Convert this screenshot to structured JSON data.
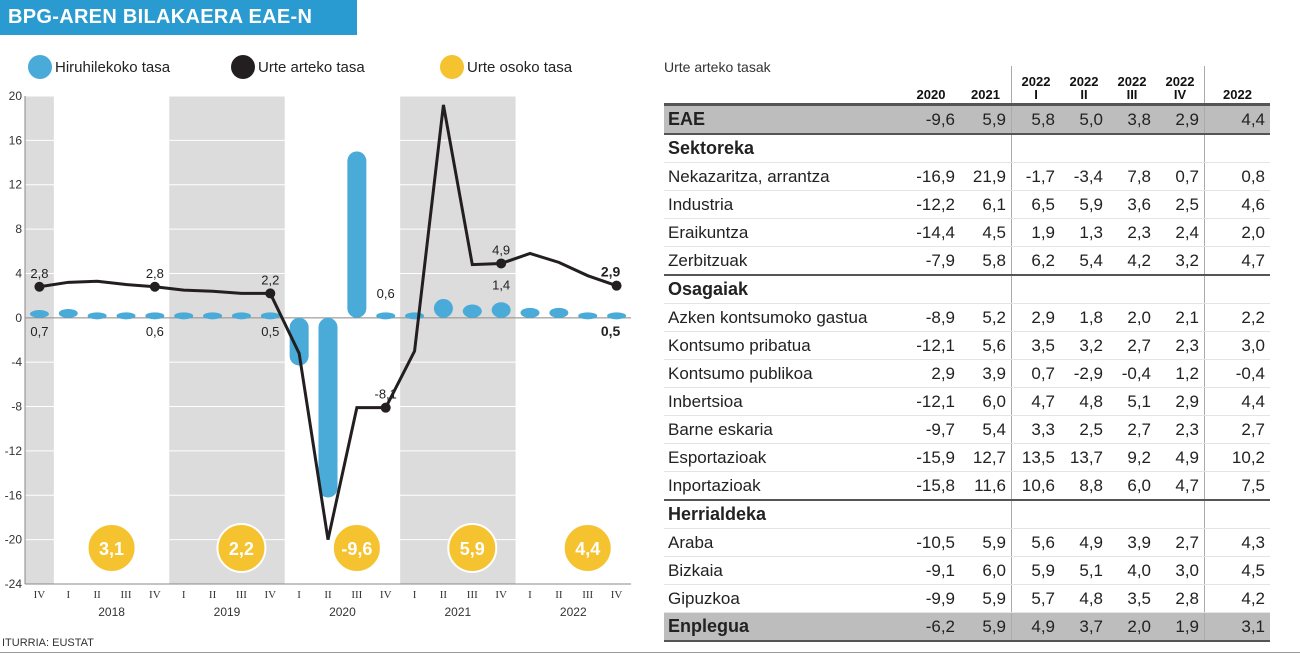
{
  "title": "BPG-AREN BILAKAERA EAE-N",
  "source": "ITURRIA: EUSTAT",
  "chart_data": {
    "type": "bar",
    "legend": {
      "placement": "top",
      "items": [
        {
          "name": "Hiruhilekoko tasa",
          "color": "#4aaad8"
        },
        {
          "name": "Urte arteko tasa",
          "color": "#231f20"
        },
        {
          "name": "Urte osoko tasa",
          "color": "#f5c230"
        }
      ]
    },
    "quarters": [
      "IV",
      "I",
      "II",
      "III",
      "IV",
      "I",
      "II",
      "III",
      "IV",
      "I",
      "II",
      "III",
      "IV",
      "I",
      "II",
      "III",
      "IV",
      "I",
      "II",
      "III",
      "IV"
    ],
    "years": [
      "2018",
      "2019",
      "2020",
      "2021",
      "2022"
    ],
    "ylim": [
      -24,
      20
    ],
    "yticks": [
      20,
      16,
      12,
      8,
      4,
      0,
      -4,
      -8,
      -12,
      -16,
      -20,
      -24
    ],
    "quarterly_rate": [
      0.7,
      0.8,
      0.6,
      0.5,
      0.6,
      0.5,
      0.4,
      0.5,
      0.5,
      -4.3,
      -16.2,
      15.0,
      0.6,
      0.1,
      1.7,
      1.2,
      1.4,
      0.9,
      0.9,
      0.1,
      0.5
    ],
    "year_on_year_rate": [
      2.8,
      3.2,
      3.3,
      3.0,
      2.8,
      2.5,
      2.4,
      2.2,
      2.2,
      -3.2,
      -20.0,
      -8.1,
      -8.1,
      -3.0,
      19.2,
      4.8,
      4.9,
      5.8,
      5.0,
      3.8,
      2.9
    ],
    "annual_rate": [
      "3,1",
      "2,2",
      "-9,6",
      "5,9",
      "4,4"
    ],
    "bar_labels": [
      {
        "index": 0,
        "text": "0,7"
      },
      {
        "index": 4,
        "text": "0,6"
      },
      {
        "index": 8,
        "text": "0,5"
      },
      {
        "index": 12,
        "text": "0,6"
      },
      {
        "index": 16,
        "text": "1,4"
      },
      {
        "index": 20,
        "text": "0,5"
      }
    ],
    "line_labels": [
      {
        "index": 0,
        "text": "2,8"
      },
      {
        "index": 4,
        "text": "2,8"
      },
      {
        "index": 8,
        "text": "2,2"
      },
      {
        "index": 12,
        "text": "-8,1"
      },
      {
        "index": 16,
        "text": "4,9"
      },
      {
        "index": 20,
        "text": "2,9"
      }
    ],
    "colors": {
      "bar": "#4aaad8",
      "line": "#231f20",
      "annual": "#f5c230",
      "band": "#dcdcdc"
    }
  },
  "table": {
    "title": "Urte arteko tasak",
    "columns": [
      {
        "top": "2020",
        "bottom": ""
      },
      {
        "top": "2021",
        "bottom": ""
      },
      {
        "top": "2022",
        "bottom": "I"
      },
      {
        "top": "2022",
        "bottom": "II"
      },
      {
        "top": "2022",
        "bottom": "III"
      },
      {
        "top": "2022",
        "bottom": "IV"
      },
      {
        "top": "2022",
        "bottom": ""
      }
    ],
    "rows": [
      {
        "type": "total",
        "label": "EAE",
        "values": [
          "-9,6",
          "5,9",
          "5,8",
          "5,0",
          "3,8",
          "2,9",
          "4,4"
        ]
      },
      {
        "type": "section",
        "label": "Sektoreka",
        "values": []
      },
      {
        "type": "data",
        "label": "Nekazaritza, arrantza",
        "values": [
          "-16,9",
          "21,9",
          "-1,7",
          "-3,4",
          "7,8",
          "0,7",
          "0,8"
        ]
      },
      {
        "type": "data",
        "label": "Industria",
        "values": [
          "-12,2",
          "6,1",
          "6,5",
          "5,9",
          "3,6",
          "2,5",
          "4,6"
        ]
      },
      {
        "type": "data",
        "label": "Eraikuntza",
        "values": [
          "-14,4",
          "4,5",
          "1,9",
          "1,3",
          "2,3",
          "2,4",
          "2,0"
        ]
      },
      {
        "type": "data",
        "label": "Zerbitzuak",
        "values": [
          "-7,9",
          "5,8",
          "6,2",
          "5,4",
          "4,2",
          "3,2",
          "4,7"
        ]
      },
      {
        "type": "section",
        "label": "Osagaiak",
        "values": []
      },
      {
        "type": "data",
        "label": "Azken kontsumoko gastua",
        "values": [
          "-8,9",
          "5,2",
          "2,9",
          "1,8",
          "2,0",
          "2,1",
          "2,2"
        ]
      },
      {
        "type": "data",
        "label": "Kontsumo pribatua",
        "values": [
          "-12,1",
          "5,6",
          "3,5",
          "3,2",
          "2,7",
          "2,3",
          "3,0"
        ]
      },
      {
        "type": "data",
        "label": "Kontsumo publikoa",
        "values": [
          "2,9",
          "3,9",
          "0,7",
          "-2,9",
          "-0,4",
          "1,2",
          "-0,4"
        ]
      },
      {
        "type": "data",
        "label": "Inbertsioa",
        "values": [
          "-12,1",
          "6,0",
          "4,7",
          "4,8",
          "5,1",
          "2,9",
          "4,4"
        ]
      },
      {
        "type": "data",
        "label": "Barne eskaria",
        "values": [
          "-9,7",
          "5,4",
          "3,3",
          "2,5",
          "2,7",
          "2,3",
          "2,7"
        ]
      },
      {
        "type": "data",
        "label": "Esportazioak",
        "values": [
          "-15,9",
          "12,7",
          "13,5",
          "13,7",
          "9,2",
          "4,9",
          "10,2"
        ]
      },
      {
        "type": "data",
        "label": "Inportazioak",
        "values": [
          "-15,8",
          "11,6",
          "10,6",
          "8,8",
          "6,0",
          "4,7",
          "7,5"
        ]
      },
      {
        "type": "section",
        "label": "Herrialdeka",
        "values": []
      },
      {
        "type": "data",
        "label": "Araba",
        "values": [
          "-10,5",
          "5,9",
          "5,6",
          "4,9",
          "3,9",
          "2,7",
          "4,3"
        ]
      },
      {
        "type": "data",
        "label": "Bizkaia",
        "values": [
          "-9,1",
          "6,0",
          "5,9",
          "5,1",
          "4,0",
          "3,0",
          "4,5"
        ]
      },
      {
        "type": "data",
        "label": "Gipuzkoa",
        "values": [
          "-9,9",
          "5,9",
          "5,7",
          "4,8",
          "3,5",
          "2,8",
          "4,2"
        ]
      },
      {
        "type": "total",
        "label": "Enplegua",
        "values": [
          "-6,2",
          "5,9",
          "4,9",
          "3,7",
          "2,0",
          "1,9",
          "3,1"
        ]
      }
    ]
  }
}
